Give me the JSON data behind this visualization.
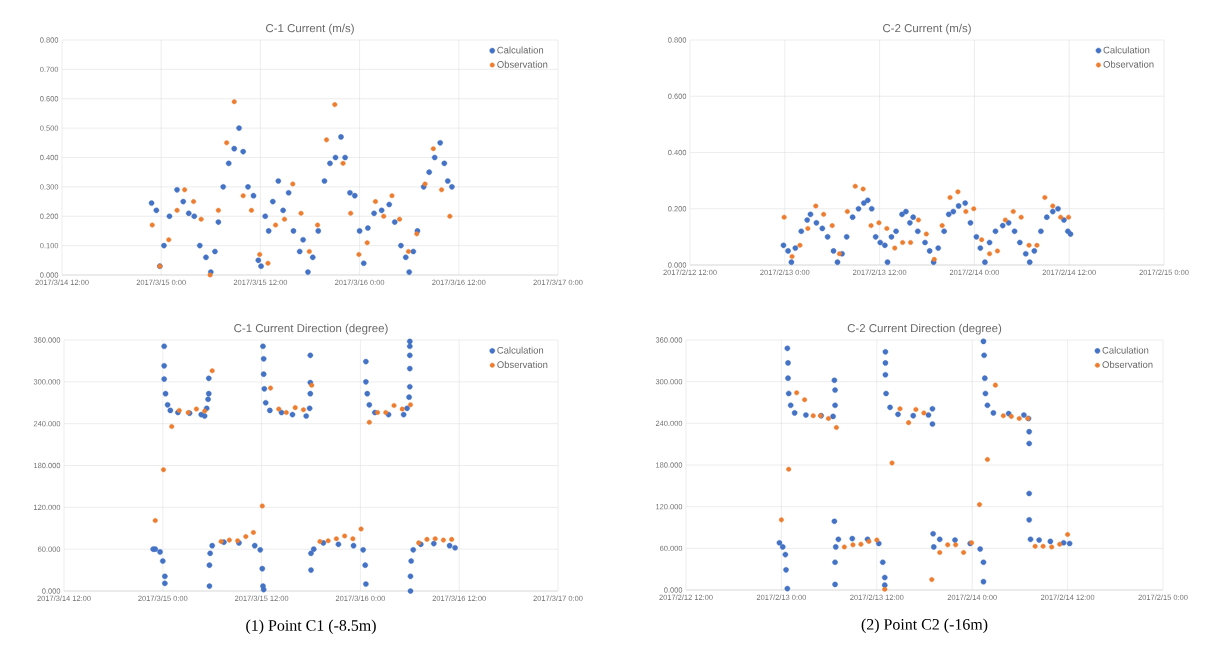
{
  "chart_data": [
    {
      "type": "scatter",
      "title": "C-1 Current (m/s)",
      "grid": true,
      "legend": "top right",
      "marker": "circle",
      "xlim": [
        "2017-03-14T12:00",
        "2017-03-17T00:00"
      ],
      "xticks": [
        {
          "value": "2017-03-14T12:00",
          "label": "2017/3/14 12:00"
        },
        {
          "value": "2017-03-15T00:00",
          "label": "2017/3/15 0:00"
        },
        {
          "value": "2017-03-15T12:00",
          "label": "2017/3/15 12:00"
        },
        {
          "value": "2017-03-16T00:00",
          "label": "2017/3/16 0:00"
        },
        {
          "value": "2017-03-16T12:00",
          "label": "2017/3/16 12:00"
        },
        {
          "value": "2017-03-17T00:00",
          "label": "2017/3/17 0:00"
        }
      ],
      "ylim": [
        0,
        0.8
      ],
      "yticks": [
        {
          "value": 0,
          "label": "0.000"
        },
        {
          "value": 0.1,
          "label": "0.100"
        },
        {
          "value": 0.2,
          "label": "0.200"
        },
        {
          "value": 0.3,
          "label": "0.300"
        },
        {
          "value": 0.4,
          "label": "0.400"
        },
        {
          "value": 0.5,
          "label": "0.500"
        },
        {
          "value": 0.6,
          "label": "0.600"
        },
        {
          "value": 0.7,
          "label": "0.700"
        },
        {
          "value": 0.8,
          "label": "0.800"
        }
      ],
      "series": [
        {
          "name": "Calculation",
          "color": "#4472c4",
          "x": [
            "2017-03-14T22:50",
            "2017-03-14T23:25",
            "2017-03-14T23:50",
            "2017-03-15T00:20",
            "2017-03-15T01:00",
            "2017-03-15T01:55",
            "2017-03-15T02:40",
            "2017-03-15T03:20",
            "2017-03-15T04:00",
            "2017-03-15T04:40",
            "2017-03-15T05:25",
            "2017-03-15T06:00",
            "2017-03-15T06:30",
            "2017-03-15T06:55",
            "2017-03-15T07:30",
            "2017-03-15T08:10",
            "2017-03-15T08:50",
            "2017-03-15T09:25",
            "2017-03-15T09:55",
            "2017-03-15T10:30",
            "2017-03-15T11:10",
            "2017-03-15T11:45",
            "2017-03-15T12:05",
            "2017-03-15T12:35",
            "2017-03-15T13:00",
            "2017-03-15T13:30",
            "2017-03-15T14:10",
            "2017-03-15T14:45",
            "2017-03-15T15:25",
            "2017-03-15T16:00",
            "2017-03-15T16:45",
            "2017-03-15T17:10",
            "2017-03-15T17:45",
            "2017-03-15T18:20",
            "2017-03-15T19:00",
            "2017-03-15T19:45",
            "2017-03-15T20:25",
            "2017-03-15T21:05",
            "2017-03-15T21:45",
            "2017-03-15T22:15",
            "2017-03-15T22:50",
            "2017-03-15T23:25",
            "2017-03-16T00:00",
            "2017-03-16T00:30",
            "2017-03-16T01:00",
            "2017-03-16T01:45",
            "2017-03-16T02:40",
            "2017-03-16T03:35",
            "2017-03-16T04:15",
            "2017-03-16T05:00",
            "2017-03-16T05:35",
            "2017-03-16T06:00",
            "2017-03-16T06:30",
            "2017-03-16T07:00",
            "2017-03-16T07:45",
            "2017-03-16T08:25",
            "2017-03-16T09:05",
            "2017-03-16T09:45",
            "2017-03-16T10:15",
            "2017-03-16T10:40",
            "2017-03-16T11:10"
          ],
          "values": [
            0.245,
            0.22,
            0.03,
            0.1,
            0.2,
            0.29,
            0.25,
            0.21,
            0.2,
            0.1,
            0.06,
            0.01,
            0.08,
            0.18,
            0.3,
            0.38,
            0.43,
            0.5,
            0.42,
            0.3,
            0.27,
            0.05,
            0.03,
            0.2,
            0.15,
            0.25,
            0.32,
            0.22,
            0.28,
            0.15,
            0.08,
            0.12,
            0.01,
            0.06,
            0.15,
            0.32,
            0.38,
            0.4,
            0.47,
            0.4,
            0.28,
            0.27,
            0.15,
            0.04,
            0.16,
            0.21,
            0.22,
            0.24,
            0.18,
            0.1,
            0.06,
            0.01,
            0.08,
            0.15,
            0.3,
            0.35,
            0.4,
            0.45,
            0.38,
            0.32,
            0.3
          ]
        },
        {
          "name": "Observation",
          "color": "#ed7d31",
          "x": [
            "2017-03-14T22:55",
            "2017-03-14T23:50",
            "2017-03-15T00:55",
            "2017-03-15T01:55",
            "2017-03-15T02:50",
            "2017-03-15T03:55",
            "2017-03-15T04:50",
            "2017-03-15T05:55",
            "2017-03-15T06:55",
            "2017-03-15T07:55",
            "2017-03-15T08:50",
            "2017-03-15T09:55",
            "2017-03-15T10:55",
            "2017-03-15T11:55",
            "2017-03-15T12:55",
            "2017-03-15T13:50",
            "2017-03-15T14:55",
            "2017-03-15T15:55",
            "2017-03-15T16:55",
            "2017-03-15T17:55",
            "2017-03-15T18:55",
            "2017-03-15T20:00",
            "2017-03-15T21:00",
            "2017-03-15T22:00",
            "2017-03-15T22:55",
            "2017-03-15T23:55",
            "2017-03-16T00:55",
            "2017-03-16T01:55",
            "2017-03-16T02:55",
            "2017-03-16T03:55",
            "2017-03-16T04:50",
            "2017-03-16T05:55",
            "2017-03-16T06:55",
            "2017-03-16T07:55",
            "2017-03-16T08:55",
            "2017-03-16T09:55",
            "2017-03-16T10:55"
          ],
          "values": [
            0.17,
            0.03,
            0.12,
            0.22,
            0.29,
            0.25,
            0.19,
            0.0,
            0.22,
            0.45,
            0.59,
            0.27,
            0.22,
            0.07,
            0.04,
            0.17,
            0.19,
            0.31,
            0.21,
            0.08,
            0.17,
            0.46,
            0.58,
            0.38,
            0.21,
            0.07,
            0.11,
            0.25,
            0.2,
            0.27,
            0.19,
            0.08,
            0.14,
            0.31,
            0.43,
            0.29,
            0.2
          ]
        }
      ]
    },
    {
      "type": "scatter",
      "title": "C-2 Current (m/s)",
      "grid": true,
      "legend": "top right",
      "marker": "circle",
      "xlim": [
        "2017-02-12T12:00",
        "2017-02-15T00:00"
      ],
      "xticks": [
        {
          "value": "2017-02-12T12:00",
          "label": "2017/2/12 12:00"
        },
        {
          "value": "2017-02-13T00:00",
          "label": "2017/2/13 0:00"
        },
        {
          "value": "2017-02-13T12:00",
          "label": "2017/2/13 12:00"
        },
        {
          "value": "2017-02-14T00:00",
          "label": "2017/2/14 0:00"
        },
        {
          "value": "2017-02-14T12:00",
          "label": "2017/2/14 12:00"
        },
        {
          "value": "2017-02-15T00:00",
          "label": "2017/2/15 0:00"
        }
      ],
      "ylim": [
        0,
        0.8
      ],
      "yticks": [
        {
          "value": 0,
          "label": "0.000"
        },
        {
          "value": 0.2,
          "label": "0.200"
        },
        {
          "value": 0.4,
          "label": "0.400"
        },
        {
          "value": 0.6,
          "label": "0.600"
        },
        {
          "value": 0.8,
          "label": "0.800"
        }
      ],
      "series": [
        {
          "name": "Calculation",
          "color": "#4472c4",
          "x": [
            "2017-02-12T23:50",
            "2017-02-13T00:25",
            "2017-02-13T00:50",
            "2017-02-13T01:20",
            "2017-02-13T02:05",
            "2017-02-13T02:50",
            "2017-02-13T03:15",
            "2017-02-13T04:00",
            "2017-02-13T04:45",
            "2017-02-13T05:25",
            "2017-02-13T06:10",
            "2017-02-13T06:40",
            "2017-02-13T07:15",
            "2017-02-13T07:50",
            "2017-02-13T08:35",
            "2017-02-13T09:20",
            "2017-02-13T10:00",
            "2017-02-13T10:30",
            "2017-02-13T11:00",
            "2017-02-13T11:30",
            "2017-02-13T12:05",
            "2017-02-13T12:40",
            "2017-02-13T13:00",
            "2017-02-13T13:30",
            "2017-02-13T14:05",
            "2017-02-13T14:50",
            "2017-02-13T15:20",
            "2017-02-13T15:50",
            "2017-02-13T16:15",
            "2017-02-13T16:50",
            "2017-02-13T17:45",
            "2017-02-13T18:20",
            "2017-02-13T18:50",
            "2017-02-13T19:25",
            "2017-02-13T20:10",
            "2017-02-13T20:45",
            "2017-02-13T21:20",
            "2017-02-13T22:00",
            "2017-02-13T22:50",
            "2017-02-13T23:30",
            "2017-02-14T00:15",
            "2017-02-14T00:45",
            "2017-02-14T01:20",
            "2017-02-14T01:55",
            "2017-02-14T02:40",
            "2017-02-14T03:35",
            "2017-02-14T04:20",
            "2017-02-14T05:05",
            "2017-02-14T05:45",
            "2017-02-14T06:30",
            "2017-02-14T07:00",
            "2017-02-14T07:35",
            "2017-02-14T08:25",
            "2017-02-14T09:10",
            "2017-02-14T09:55",
            "2017-02-14T10:35",
            "2017-02-14T11:20",
            "2017-02-14T11:50",
            "2017-02-14T12:10"
          ],
          "values": [
            0.07,
            0.05,
            0.01,
            0.06,
            0.12,
            0.16,
            0.18,
            0.15,
            0.13,
            0.1,
            0.05,
            0.01,
            0.04,
            0.1,
            0.17,
            0.2,
            0.22,
            0.23,
            0.2,
            0.1,
            0.08,
            0.07,
            0.01,
            0.1,
            0.12,
            0.18,
            0.19,
            0.15,
            0.17,
            0.12,
            0.08,
            0.05,
            0.01,
            0.06,
            0.12,
            0.18,
            0.19,
            0.21,
            0.22,
            0.15,
            0.1,
            0.06,
            0.01,
            0.08,
            0.12,
            0.14,
            0.15,
            0.12,
            0.08,
            0.04,
            0.01,
            0.05,
            0.12,
            0.17,
            0.19,
            0.2,
            0.16,
            0.12,
            0.11
          ]
        },
        {
          "name": "Observation",
          "color": "#ed7d31",
          "x": [
            "2017-02-12T23:55",
            "2017-02-13T00:55",
            "2017-02-13T01:55",
            "2017-02-13T02:55",
            "2017-02-13T03:55",
            "2017-02-13T04:55",
            "2017-02-13T06:00",
            "2017-02-13T06:55",
            "2017-02-13T07:55",
            "2017-02-13T08:55",
            "2017-02-13T09:55",
            "2017-02-13T10:55",
            "2017-02-13T11:55",
            "2017-02-13T12:55",
            "2017-02-13T13:55",
            "2017-02-13T14:55",
            "2017-02-13T15:55",
            "2017-02-13T16:55",
            "2017-02-13T17:55",
            "2017-02-13T18:55",
            "2017-02-13T19:55",
            "2017-02-13T20:55",
            "2017-02-13T21:55",
            "2017-02-13T22:55",
            "2017-02-13T23:55",
            "2017-02-14T00:55",
            "2017-02-14T01:55",
            "2017-02-14T02:55",
            "2017-02-14T03:55",
            "2017-02-14T04:55",
            "2017-02-14T05:55",
            "2017-02-14T06:55",
            "2017-02-14T07:55",
            "2017-02-14T08:55",
            "2017-02-14T09:55",
            "2017-02-14T10:55",
            "2017-02-14T11:55"
          ],
          "values": [
            0.17,
            0.03,
            0.07,
            0.13,
            0.21,
            0.18,
            0.14,
            0.04,
            0.19,
            0.28,
            0.27,
            0.14,
            0.15,
            0.13,
            0.06,
            0.08,
            0.08,
            0.16,
            0.11,
            0.02,
            0.14,
            0.24,
            0.26,
            0.19,
            0.2,
            0.09,
            0.04,
            0.05,
            0.16,
            0.19,
            0.17,
            0.07,
            0.07,
            0.24,
            0.21,
            0.17,
            0.17
          ]
        }
      ]
    },
    {
      "type": "scatter",
      "title": "C-1 Current Direction (degree)",
      "grid": true,
      "legend": "top right",
      "marker": "circle",
      "annotations": [
        "(1)  Point C1 (-8.5m)"
      ],
      "xlim": [
        "2017-03-14T12:00",
        "2017-03-17T00:00"
      ],
      "xticks": [
        {
          "value": "2017-03-14T12:00",
          "label": "2017/3/14 12:00"
        },
        {
          "value": "2017-03-15T00:00",
          "label": "2017/3/15 0:00"
        },
        {
          "value": "2017-03-15T12:00",
          "label": "2017/3/15 12:00"
        },
        {
          "value": "2017-03-16T00:00",
          "label": "2017/3/16 0:00"
        },
        {
          "value": "2017-03-16T12:00",
          "label": "2017/3/16 12:00"
        },
        {
          "value": "2017-03-17T00:00",
          "label": "2017/3/17 0:00"
        }
      ],
      "ylim": [
        0,
        360
      ],
      "yticks": [
        {
          "value": 0,
          "label": "0.000"
        },
        {
          "value": 60,
          "label": "60.000"
        },
        {
          "value": 120,
          "label": "120.000"
        },
        {
          "value": 180,
          "label": "180.000"
        },
        {
          "value": 240,
          "label": "240.000"
        },
        {
          "value": 300,
          "label": "300.000"
        },
        {
          "value": 360,
          "label": "360.000"
        }
      ],
      "series": [
        {
          "name": "Calculation",
          "color": "#4472c4",
          "x": [
            "2017-03-14T22:50",
            "2017-03-14T23:05",
            "2017-03-14T23:40",
            "2017-03-15T00:00",
            "2017-03-15T00:15",
            "2017-03-15T00:15",
            "2017-03-15T00:10",
            "2017-03-15T00:10",
            "2017-03-15T00:10",
            "2017-03-15T00:20",
            "2017-03-15T00:35",
            "2017-03-15T00:55",
            "2017-03-15T01:50",
            "2017-03-15T03:15",
            "2017-03-15T04:40",
            "2017-03-15T05:05",
            "2017-03-15T05:20",
            "2017-03-15T05:30",
            "2017-03-15T05:35",
            "2017-03-15T05:35",
            "2017-03-15T05:40",
            "2017-03-15T05:40",
            "2017-03-15T05:45",
            "2017-03-15T06:00",
            "2017-03-15T07:25",
            "2017-03-15T09:15",
            "2017-03-15T11:10",
            "2017-03-15T11:50",
            "2017-03-15T12:05",
            "2017-03-15T12:10",
            "2017-03-15T12:15",
            "2017-03-15T12:10",
            "2017-03-15T12:15",
            "2017-03-15T12:15",
            "2017-03-15T12:20",
            "2017-03-15T12:30",
            "2017-03-15T13:00",
            "2017-03-15T14:25",
            "2017-03-15T15:45",
            "2017-03-15T17:25",
            "2017-03-15T17:50",
            "2017-03-15T17:55",
            "2017-03-15T17:55",
            "2017-03-15T17:55",
            "2017-03-15T18:00",
            "2017-03-15T18:00",
            "2017-03-15T18:20",
            "2017-03-15T19:30",
            "2017-03-15T21:20",
            "2017-03-15T23:10",
            "2017-03-16T00:20",
            "2017-03-16T00:35",
            "2017-03-16T00:40",
            "2017-03-16T00:40",
            "2017-03-16T00:40",
            "2017-03-16T00:50",
            "2017-03-16T01:05",
            "2017-03-16T01:45",
            "2017-03-16T03:25",
            "2017-03-16T05:15",
            "2017-03-16T05:40",
            "2017-03-16T05:55",
            "2017-03-16T06:00",
            "2017-03-16T06:00",
            "2017-03-16T06:00",
            "2017-03-16T06:00",
            "2017-03-16T06:00",
            "2017-03-16T06:05",
            "2017-03-16T06:05",
            "2017-03-16T06:10",
            "2017-03-16T06:25",
            "2017-03-16T07:20",
            "2017-03-16T08:55",
            "2017-03-16T10:50",
            "2017-03-16T11:30"
          ],
          "values": [
            60,
            60,
            56,
            43,
            21,
            11,
            351,
            323,
            304,
            283,
            267,
            259,
            256,
            255,
            253,
            251,
            262,
            275,
            283,
            305,
            7,
            37,
            54,
            65,
            70,
            69,
            65,
            59,
            32,
            7,
            2,
            351,
            333,
            311,
            290,
            270,
            259,
            256,
            253,
            251,
            262,
            283,
            299,
            338,
            30,
            54,
            60,
            69,
            67,
            65,
            59,
            37,
            10,
            329,
            300,
            283,
            267,
            256,
            253,
            253,
            262,
            278,
            293,
            319,
            338,
            351,
            358,
            0,
            21,
            43,
            59,
            67,
            68,
            65,
            62
          ]
        },
        {
          "name": "Observation",
          "color": "#ed7d31",
          "x": [
            "2017-03-14T23:05",
            "2017-03-15T00:05",
            "2017-03-15T01:05",
            "2017-03-15T02:00",
            "2017-03-15T03:05",
            "2017-03-15T04:05",
            "2017-03-15T05:05",
            "2017-03-15T06:00",
            "2017-03-15T07:05",
            "2017-03-15T08:05",
            "2017-03-15T09:05",
            "2017-03-15T10:05",
            "2017-03-15T11:00",
            "2017-03-15T12:05",
            "2017-03-15T13:05",
            "2017-03-15T14:05",
            "2017-03-15T15:00",
            "2017-03-15T16:05",
            "2017-03-15T17:05",
            "2017-03-15T18:05",
            "2017-03-15T19:05",
            "2017-03-15T20:05",
            "2017-03-15T21:05",
            "2017-03-15T22:05",
            "2017-03-15T23:05",
            "2017-03-16T00:05",
            "2017-03-16T01:05",
            "2017-03-16T02:05",
            "2017-03-16T03:05",
            "2017-03-16T04:05",
            "2017-03-16T05:05",
            "2017-03-16T06:05",
            "2017-03-16T07:05",
            "2017-03-16T08:05",
            "2017-03-16T09:05",
            "2017-03-16T10:05",
            "2017-03-16T11:05"
          ],
          "values": [
            101,
            174,
            236,
            259,
            256,
            261,
            258,
            316,
            71,
            73,
            72,
            78,
            84,
            122,
            291,
            261,
            256,
            263,
            260,
            295,
            71,
            72,
            75,
            79,
            75,
            89,
            242,
            256,
            256,
            266,
            261,
            267,
            69,
            74,
            75,
            73,
            74
          ]
        }
      ]
    },
    {
      "type": "scatter",
      "title": "C-2 Current Direction (degree)",
      "grid": true,
      "legend": "top right",
      "marker": "circle",
      "annotations": [
        "(2) Point C2 (-16m)"
      ],
      "xlim": [
        "2017-02-12T12:00",
        "2017-02-15T00:00"
      ],
      "xticks": [
        {
          "value": "2017-02-12T12:00",
          "label": "2017/2/12 12:00"
        },
        {
          "value": "2017-02-13T00:00",
          "label": "2017/2/13 0:00"
        },
        {
          "value": "2017-02-13T12:00",
          "label": "2017/2/13 12:00"
        },
        {
          "value": "2017-02-14T00:00",
          "label": "2017/2/14 0:00"
        },
        {
          "value": "2017-02-14T12:00",
          "label": "2017/2/14 12:00"
        },
        {
          "value": "2017-02-15T00:00",
          "label": "2017/2/15 0:00"
        }
      ],
      "ylim": [
        0,
        360
      ],
      "yticks": [
        {
          "value": 0,
          "label": "0.000"
        },
        {
          "value": 60,
          "label": "60.000"
        },
        {
          "value": 120,
          "label": "120.000"
        },
        {
          "value": 180,
          "label": "180.000"
        },
        {
          "value": 240,
          "label": "240.000"
        },
        {
          "value": 300,
          "label": "300.000"
        },
        {
          "value": 360,
          "label": "360.000"
        }
      ],
      "series": [
        {
          "name": "Calculation",
          "color": "#4472c4",
          "x": [
            "2017-02-12T23:45",
            "2017-02-13T00:10",
            "2017-02-13T00:30",
            "2017-02-13T00:35",
            "2017-02-13T00:45",
            "2017-02-13T00:45",
            "2017-02-13T00:50",
            "2017-02-13T00:50",
            "2017-02-13T00:55",
            "2017-02-13T01:10",
            "2017-02-13T01:40",
            "2017-02-13T03:05",
            "2017-02-13T05:00",
            "2017-02-13T06:30",
            "2017-02-13T06:45",
            "2017-02-13T06:45",
            "2017-02-13T06:40",
            "2017-02-13T06:40",
            "2017-02-13T06:45",
            "2017-02-13T06:45",
            "2017-02-13T06:50",
            "2017-02-13T07:10",
            "2017-02-13T08:55",
            "2017-02-13T10:50",
            "2017-02-13T12:15",
            "2017-02-13T12:45",
            "2017-02-13T13:00",
            "2017-02-13T13:00",
            "2017-02-13T13:05",
            "2017-02-13T13:05",
            "2017-02-13T13:05",
            "2017-02-13T13:10",
            "2017-02-13T13:40",
            "2017-02-13T14:40",
            "2017-02-13T16:35",
            "2017-02-13T18:30",
            "2017-02-13T19:00",
            "2017-02-13T19:00",
            "2017-02-13T19:05",
            "2017-02-13T19:10",
            "2017-02-13T19:55",
            "2017-02-13T21:50",
            "2017-02-13T23:45",
            "2017-02-14T01:00",
            "2017-02-14T01:25",
            "2017-02-14T01:25",
            "2017-02-14T01:25",
            "2017-02-14T01:30",
            "2017-02-14T01:35",
            "2017-02-14T01:40",
            "2017-02-14T01:55",
            "2017-02-14T02:40",
            "2017-02-14T04:35",
            "2017-02-14T06:30",
            "2017-02-14T07:05",
            "2017-02-14T07:10",
            "2017-02-14T07:10",
            "2017-02-14T07:10",
            "2017-02-14T07:10",
            "2017-02-14T07:20",
            "2017-02-14T08:25",
            "2017-02-14T09:50",
            "2017-02-14T11:30",
            "2017-02-14T12:15"
          ],
          "values": [
            68,
            62,
            51,
            29,
            2,
            348,
            327,
            305,
            283,
            266,
            255,
            252,
            251,
            250,
            266,
            288,
            302,
            99,
            40,
            8,
            62,
            73,
            74,
            73,
            67,
            40,
            18,
            7,
            343,
            327,
            310,
            283,
            263,
            253,
            251,
            252,
            261,
            239,
            81,
            62,
            73,
            72,
            67,
            59,
            40,
            12,
            358,
            338,
            305,
            283,
            266,
            255,
            254,
            252,
            247,
            228,
            211,
            139,
            101,
            73,
            72,
            70,
            68,
            67
          ]
        },
        {
          "name": "Observation",
          "color": "#ed7d31",
          "x": [
            "2017-02-13T00:00",
            "2017-02-13T00:55",
            "2017-02-13T01:55",
            "2017-02-13T02:55",
            "2017-02-13T04:00",
            "2017-02-13T04:55",
            "2017-02-13T05:55",
            "2017-02-13T06:55",
            "2017-02-13T07:55",
            "2017-02-13T09:00",
            "2017-02-13T10:00",
            "2017-02-13T11:00",
            "2017-02-13T12:00",
            "2017-02-13T13:00",
            "2017-02-13T13:55",
            "2017-02-13T14:55",
            "2017-02-13T16:00",
            "2017-02-13T16:55",
            "2017-02-13T17:55",
            "2017-02-13T18:55",
            "2017-02-13T19:55",
            "2017-02-13T20:55",
            "2017-02-13T21:55",
            "2017-02-13T22:55",
            "2017-02-13T23:55",
            "2017-02-14T00:55",
            "2017-02-14T01:55",
            "2017-02-14T02:55",
            "2017-02-14T03:55",
            "2017-02-14T04:55",
            "2017-02-14T05:55",
            "2017-02-14T07:00",
            "2017-02-14T07:55",
            "2017-02-14T08:55",
            "2017-02-14T10:00",
            "2017-02-14T11:00",
            "2017-02-14T12:00"
          ],
          "values": [
            101,
            174,
            284,
            274,
            251,
            251,
            247,
            234,
            62,
            65,
            66,
            70,
            72,
            1,
            183,
            261,
            241,
            260,
            255,
            15,
            54,
            65,
            65,
            54,
            68,
            123,
            188,
            295,
            251,
            250,
            247,
            247,
            63,
            63,
            62,
            66,
            80
          ]
        }
      ]
    }
  ]
}
